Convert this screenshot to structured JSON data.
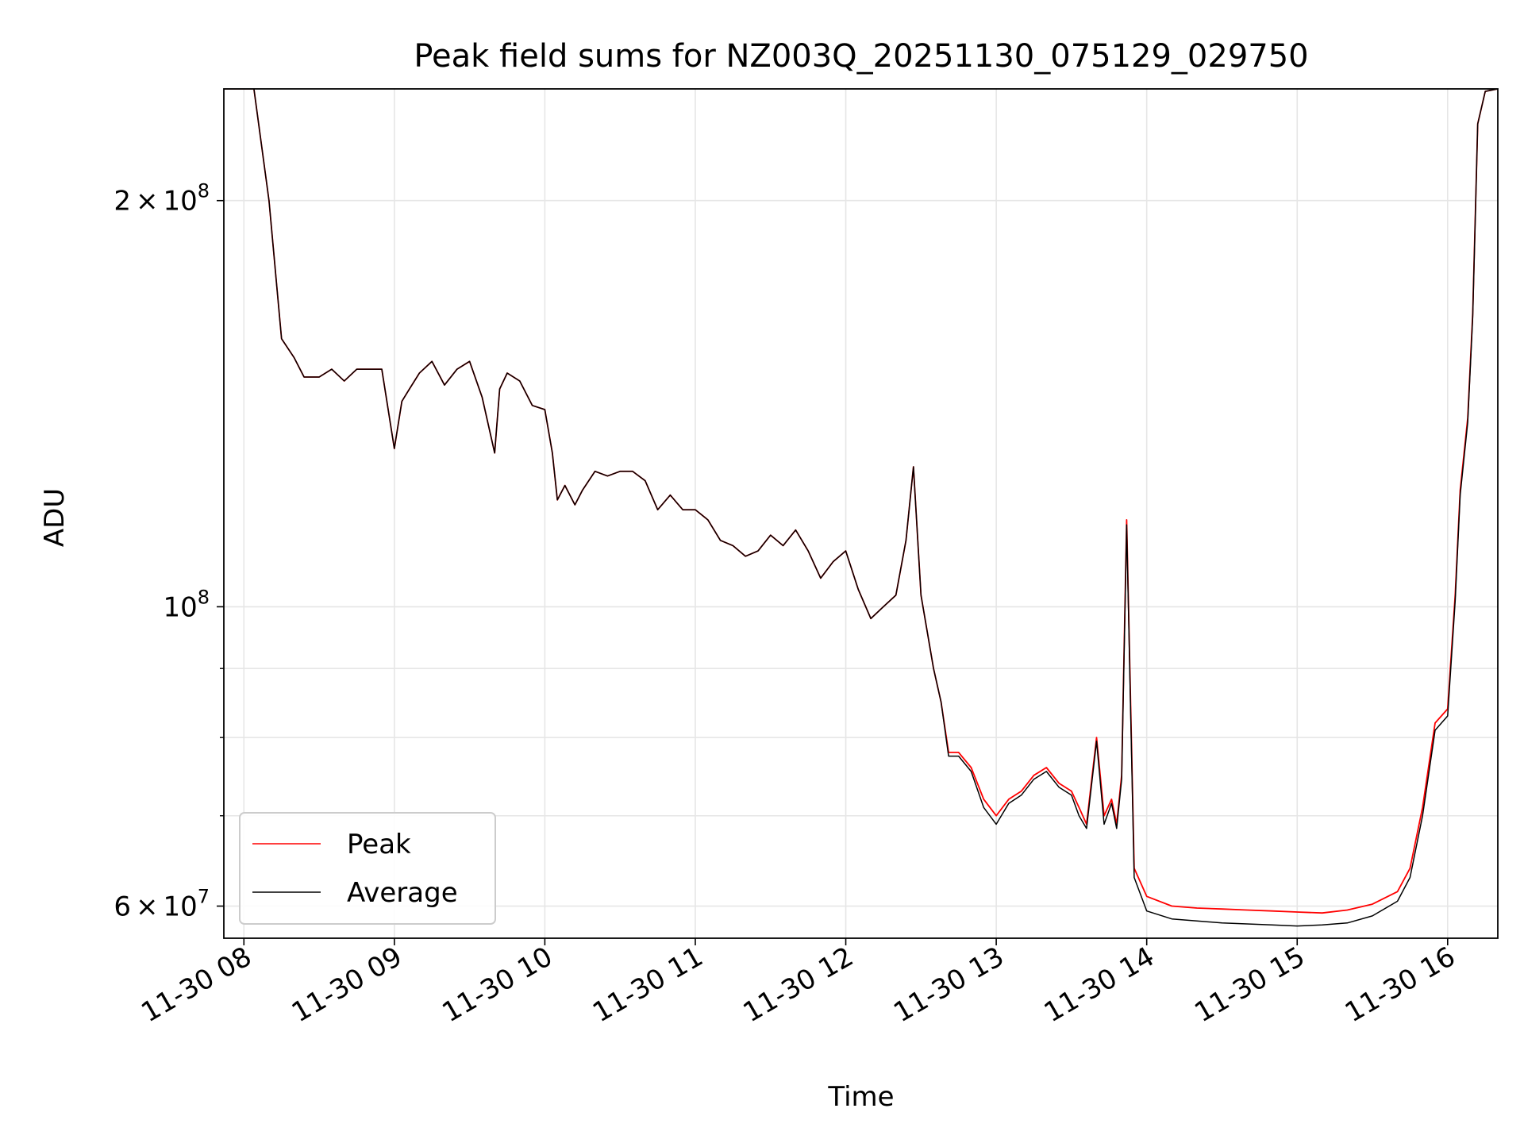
{
  "chart_data": {
    "type": "line",
    "title": "Peak field sums for NZ003Q_20251130_075129_029750",
    "xlabel": "Time",
    "ylabel": "ADU",
    "y_scale": "log",
    "ylim": [
      56800000,
      242000000
    ],
    "xlim": [
      "2025-11-30 07:52",
      "2025-11-30 16:20"
    ],
    "grid": true,
    "legend_position": "lower-left",
    "x_ticks": [
      {
        "value": "2025-11-30 08:00",
        "label": "11-30 08"
      },
      {
        "value": "2025-11-30 09:00",
        "label": "11-30 09"
      },
      {
        "value": "2025-11-30 10:00",
        "label": "11-30 10"
      },
      {
        "value": "2025-11-30 11:00",
        "label": "11-30 11"
      },
      {
        "value": "2025-11-30 12:00",
        "label": "11-30 12"
      },
      {
        "value": "2025-11-30 13:00",
        "label": "11-30 13"
      },
      {
        "value": "2025-11-30 14:00",
        "label": "11-30 14"
      },
      {
        "value": "2025-11-30 15:00",
        "label": "11-30 15"
      },
      {
        "value": "2025-11-30 16:00",
        "label": "11-30 16"
      }
    ],
    "y_ticks_major": [
      {
        "value": 60000000,
        "mantissa": "6",
        "exponent": "7"
      },
      {
        "value": 100000000,
        "mantissa": "",
        "exponent": "8"
      },
      {
        "value": 200000000,
        "mantissa": "2",
        "exponent": "8"
      }
    ],
    "y_ticks_minor": [
      70000000,
      80000000,
      90000000
    ],
    "tick_times_label": "×",
    "tick_base": "10",
    "x": [
      "2025-11-30 07:52",
      "2025-11-30 08:04",
      "2025-11-30 08:10",
      "2025-11-30 08:15",
      "2025-11-30 08:20",
      "2025-11-30 08:24",
      "2025-11-30 08:30",
      "2025-11-30 08:35",
      "2025-11-30 08:40",
      "2025-11-30 08:45",
      "2025-11-30 08:50",
      "2025-11-30 08:55",
      "2025-11-30 09:00",
      "2025-11-30 09:03",
      "2025-11-30 09:06",
      "2025-11-30 09:10",
      "2025-11-30 09:15",
      "2025-11-30 09:20",
      "2025-11-30 09:25",
      "2025-11-30 09:30",
      "2025-11-30 09:35",
      "2025-11-30 09:40",
      "2025-11-30 09:42",
      "2025-11-30 09:45",
      "2025-11-30 09:50",
      "2025-11-30 09:55",
      "2025-11-30 10:00",
      "2025-11-30 10:03",
      "2025-11-30 10:05",
      "2025-11-30 10:08",
      "2025-11-30 10:12",
      "2025-11-30 10:15",
      "2025-11-30 10:20",
      "2025-11-30 10:25",
      "2025-11-30 10:30",
      "2025-11-30 10:35",
      "2025-11-30 10:40",
      "2025-11-30 10:45",
      "2025-11-30 10:50",
      "2025-11-30 10:55",
      "2025-11-30 11:00",
      "2025-11-30 11:05",
      "2025-11-30 11:10",
      "2025-11-30 11:15",
      "2025-11-30 11:20",
      "2025-11-30 11:25",
      "2025-11-30 11:30",
      "2025-11-30 11:35",
      "2025-11-30 11:40",
      "2025-11-30 11:45",
      "2025-11-30 11:50",
      "2025-11-30 11:55",
      "2025-11-30 12:00",
      "2025-11-30 12:05",
      "2025-11-30 12:10",
      "2025-11-30 12:15",
      "2025-11-30 12:20",
      "2025-11-30 12:24",
      "2025-11-30 12:27",
      "2025-11-30 12:30",
      "2025-11-30 12:35",
      "2025-11-30 12:38",
      "2025-11-30 12:41",
      "2025-11-30 12:45",
      "2025-11-30 12:50",
      "2025-11-30 12:55",
      "2025-11-30 13:00",
      "2025-11-30 13:05",
      "2025-11-30 13:10",
      "2025-11-30 13:15",
      "2025-11-30 13:20",
      "2025-11-30 13:25",
      "2025-11-30 13:30",
      "2025-11-30 13:33",
      "2025-11-30 13:36",
      "2025-11-30 13:40",
      "2025-11-30 13:43",
      "2025-11-30 13:46",
      "2025-11-30 13:48",
      "2025-11-30 13:50",
      "2025-11-30 13:52",
      "2025-11-30 13:55",
      "2025-11-30 14:00",
      "2025-11-30 14:10",
      "2025-11-30 14:20",
      "2025-11-30 14:30",
      "2025-11-30 14:40",
      "2025-11-30 14:50",
      "2025-11-30 15:00",
      "2025-11-30 15:10",
      "2025-11-30 15:20",
      "2025-11-30 15:30",
      "2025-11-30 15:40",
      "2025-11-30 15:45",
      "2025-11-30 15:50",
      "2025-11-30 15:55",
      "2025-11-30 16:00",
      "2025-11-30 16:03",
      "2025-11-30 16:05",
      "2025-11-30 16:08",
      "2025-11-30 16:10",
      "2025-11-30 16:12",
      "2025-11-30 16:15",
      "2025-11-30 16:20"
    ],
    "series": [
      {
        "name": "Peak",
        "color": "#ff0000",
        "values": [
          242000000,
          242000000,
          200000000,
          158000000,
          153000000,
          148000000,
          148000000,
          150000000,
          147000000,
          150000000,
          150000000,
          150000000,
          131000000,
          142000000,
          145000000,
          149000000,
          152000000,
          146000000,
          150000000,
          152000000,
          143000000,
          130000000,
          145000000,
          149000000,
          147000000,
          141000000,
          140000000,
          130000000,
          120000000,
          123000000,
          119000000,
          122000000,
          126000000,
          125000000,
          126000000,
          126000000,
          124000000,
          118000000,
          121000000,
          118000000,
          118000000,
          116000000,
          112000000,
          111000000,
          109000000,
          110000000,
          113000000,
          111000000,
          114000000,
          110000000,
          105000000,
          108000000,
          110000000,
          103000000,
          98000000,
          100000000,
          102000000,
          112000000,
          127000000,
          102000000,
          90000000,
          85000000,
          78000000,
          78000000,
          76000000,
          72000000,
          70000000,
          72000000,
          73000000,
          75000000,
          76000000,
          74000000,
          73000000,
          71000000,
          69000000,
          80000000,
          70000000,
          72000000,
          69000000,
          75000000,
          116000000,
          64000000,
          61000000,
          60000000,
          59800000,
          59700000,
          59600000,
          59500000,
          59400000,
          59300000,
          59600000,
          60200000,
          61500000,
          64000000,
          71000000,
          82000000,
          84000000,
          102000000,
          122000000,
          138000000,
          165000000,
          228000000,
          241000000,
          242000000
        ]
      },
      {
        "name": "Average",
        "color": "#000000",
        "values": [
          242000000,
          242000000,
          200000000,
          158000000,
          153000000,
          148000000,
          148000000,
          150000000,
          147000000,
          150000000,
          150000000,
          150000000,
          131000000,
          142000000,
          145000000,
          149000000,
          152000000,
          146000000,
          150000000,
          152000000,
          143000000,
          130000000,
          145000000,
          149000000,
          147000000,
          141000000,
          140000000,
          130000000,
          120000000,
          123000000,
          119000000,
          122000000,
          126000000,
          125000000,
          126000000,
          126000000,
          124000000,
          118000000,
          121000000,
          118000000,
          118000000,
          116000000,
          112000000,
          111000000,
          109000000,
          110000000,
          113000000,
          111000000,
          114000000,
          110000000,
          105000000,
          108000000,
          110000000,
          103000000,
          98000000,
          100000000,
          102000000,
          112000000,
          127000000,
          102000000,
          90000000,
          85000000,
          77500000,
          77500000,
          75500000,
          71000000,
          69000000,
          71500000,
          72500000,
          74500000,
          75500000,
          73500000,
          72500000,
          70000000,
          68500000,
          79500000,
          69000000,
          71500000,
          68500000,
          74500000,
          115000000,
          63000000,
          59500000,
          58700000,
          58500000,
          58300000,
          58200000,
          58100000,
          58000000,
          58100000,
          58300000,
          59000000,
          60500000,
          63000000,
          70000000,
          81000000,
          83000000,
          101000000,
          121000000,
          137000000,
          164000000,
          228000000,
          241000000,
          242000000
        ]
      }
    ]
  }
}
